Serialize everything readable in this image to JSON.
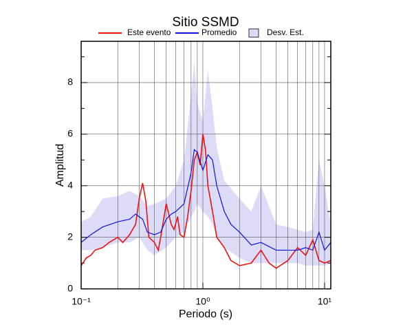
{
  "chart_data": {
    "type": "line",
    "title": "Sitio SSMD",
    "xlabel": "Periodo (s)",
    "ylabel": "Amplitud",
    "xscale": "log",
    "xlim": [
      0.1,
      11.25
    ],
    "ylim": [
      0,
      9.6
    ],
    "xticks": [
      {
        "value": 0.1,
        "label": "10⁻¹"
      },
      {
        "value": 1,
        "label": "10⁰"
      },
      {
        "value": 10,
        "label": "10¹"
      }
    ],
    "xgrid": [
      0.2,
      0.3,
      0.4,
      0.5,
      0.6,
      0.7,
      0.8,
      0.9,
      2,
      3,
      4,
      5,
      6,
      7,
      8,
      9
    ],
    "yticks": [
      0,
      2,
      4,
      6,
      8
    ],
    "yminor": [
      1,
      3,
      5,
      7,
      9
    ],
    "grid": true,
    "series": [
      {
        "name": "Este evento",
        "color": "#ee1111",
        "x": [
          0.1,
          0.11,
          0.12,
          0.13,
          0.15,
          0.17,
          0.2,
          0.22,
          0.25,
          0.28,
          0.3,
          0.32,
          0.34,
          0.36,
          0.4,
          0.43,
          0.45,
          0.5,
          0.55,
          0.58,
          0.62,
          0.65,
          0.7,
          0.75,
          0.8,
          0.85,
          0.9,
          0.95,
          1.0,
          1.05,
          1.1,
          1.2,
          1.3,
          1.5,
          1.7,
          2.0,
          2.5,
          3,
          3.5,
          4,
          5,
          6,
          7,
          8,
          9,
          10,
          11.25
        ],
        "values": [
          0.9,
          1.2,
          1.3,
          1.5,
          1.6,
          1.8,
          2.0,
          1.8,
          2.1,
          2.5,
          3.5,
          4.1,
          3.4,
          2.0,
          1.8,
          1.5,
          2.0,
          3.3,
          2.5,
          2.3,
          2.8,
          2.1,
          2.0,
          2.8,
          3.8,
          5.0,
          5.3,
          4.8,
          6.0,
          5.4,
          4.0,
          3.0,
          2.0,
          1.6,
          1.1,
          0.9,
          1.0,
          1.5,
          1.0,
          0.8,
          1.1,
          1.6,
          1.3,
          1.9,
          1.1,
          1.0,
          1.1
        ]
      },
      {
        "name": "Promedio",
        "color": "#1111dd",
        "x": [
          0.1,
          0.12,
          0.15,
          0.2,
          0.25,
          0.28,
          0.32,
          0.35,
          0.4,
          0.45,
          0.5,
          0.55,
          0.6,
          0.7,
          0.8,
          0.85,
          0.9,
          1.0,
          1.1,
          1.2,
          1.3,
          1.5,
          1.7,
          2.0,
          2.5,
          3,
          4,
          5,
          6,
          7,
          8,
          9,
          10,
          11.25
        ],
        "values": [
          1.8,
          2.1,
          2.4,
          2.6,
          2.7,
          2.9,
          2.7,
          2.2,
          2.1,
          2.2,
          2.7,
          2.9,
          3.0,
          3.3,
          4.5,
          5.4,
          5.3,
          4.6,
          5.2,
          5.0,
          4.0,
          3.0,
          2.5,
          2.2,
          1.7,
          1.8,
          1.5,
          1.5,
          1.5,
          1.6,
          1.5,
          2.2,
          1.5,
          1.8
        ]
      },
      {
        "name": "Desv. Est.",
        "color": "#dcdcf8",
        "x": [
          0.1,
          0.12,
          0.15,
          0.2,
          0.25,
          0.3,
          0.35,
          0.4,
          0.5,
          0.6,
          0.7,
          0.8,
          0.85,
          0.9,
          1.0,
          1.1,
          1.2,
          1.3,
          1.5,
          2,
          2.5,
          3,
          4,
          5,
          6,
          7,
          8,
          9,
          10,
          11.25
        ],
        "low": [
          1.5,
          1.5,
          1.6,
          1.8,
          1.8,
          2.0,
          1.5,
          1.3,
          1.6,
          2.0,
          2.2,
          2.8,
          3.0,
          3.3,
          3.0,
          2.8,
          2.5,
          2.0,
          1.6,
          1.2,
          1.0,
          1.0,
          1.0,
          1.0,
          1.0,
          0.9,
          0.9,
          0.9,
          0.9,
          1.0
        ],
        "high": [
          2.6,
          2.8,
          3.5,
          3.6,
          3.8,
          3.6,
          3.2,
          3.3,
          3.5,
          4.0,
          5.0,
          7.5,
          8.8,
          7.2,
          6.5,
          8.5,
          7.0,
          5.5,
          4.2,
          3.5,
          3.0,
          4.0,
          2.5,
          2.4,
          2.3,
          2.2,
          2.3,
          5.0,
          4.0,
          2.5
        ]
      }
    ]
  }
}
